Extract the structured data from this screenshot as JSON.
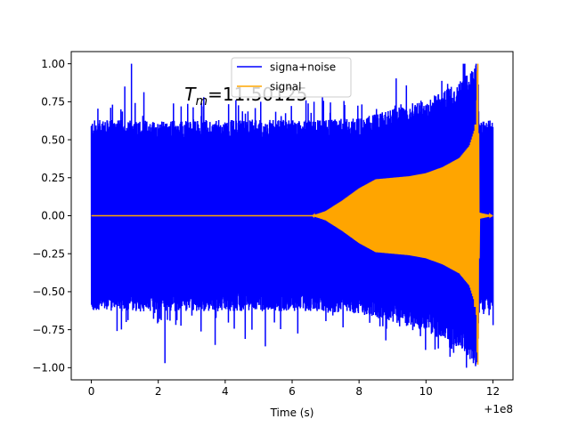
{
  "chart_data": {
    "type": "line",
    "title": "",
    "xlabel": "Time (s)",
    "ylabel": "",
    "x_offset_label": "+1e8",
    "xlim": [
      -0.6,
      12.6
    ],
    "ylim": [
      -1.08,
      1.08
    ],
    "xticks": [
      0,
      2,
      4,
      6,
      8,
      10,
      12
    ],
    "xtick_labels": [
      "0",
      "2",
      "4",
      "6",
      "8",
      "10",
      "12"
    ],
    "yticks": [
      -1.0,
      -0.75,
      -0.5,
      -0.25,
      0.0,
      0.25,
      0.5,
      0.75,
      1.0
    ],
    "ytick_labels": [
      "−1.00",
      "−0.75",
      "−0.50",
      "−0.25",
      "0.00",
      "0.25",
      "0.50",
      "0.75",
      "1.00"
    ],
    "grid": false,
    "legend_position": "top-center",
    "annotation": {
      "text_main": "T",
      "text_sub": "m",
      "text_eq": "=",
      "text_value": "11.50125",
      "x": 3.0,
      "y": 0.8
    },
    "series": [
      {
        "name": "signa+noise",
        "color": "#0000ff",
        "x_range": [
          0.0,
          12.0
        ],
        "envelope_upper": [
          [
            0.0,
            0.6
          ],
          [
            6.8,
            0.6
          ],
          [
            7.4,
            0.6
          ],
          [
            8.0,
            0.6
          ],
          [
            8.6,
            0.62
          ],
          [
            10.0,
            0.7
          ],
          [
            11.0,
            0.8
          ],
          [
            11.5,
            0.9
          ],
          [
            11.6,
            0.6
          ],
          [
            12.0,
            0.6
          ]
        ],
        "peak_max": 1.0,
        "peak_min": -0.97
      },
      {
        "name": "signal",
        "color": "#ffa500",
        "x_range": [
          0.0,
          12.0
        ],
        "envelope": [
          [
            0.0,
            0.0
          ],
          [
            6.6,
            0.0
          ],
          [
            7.0,
            0.03
          ],
          [
            7.5,
            0.1
          ],
          [
            8.0,
            0.18
          ],
          [
            8.5,
            0.24
          ],
          [
            9.0,
            0.25
          ],
          [
            9.5,
            0.26
          ],
          [
            10.0,
            0.28
          ],
          [
            10.5,
            0.32
          ],
          [
            11.0,
            0.38
          ],
          [
            11.3,
            0.46
          ],
          [
            11.5,
            0.6
          ],
          [
            11.55,
            1.0
          ],
          [
            11.6,
            0.02
          ],
          [
            12.0,
            0.0
          ]
        ]
      }
    ]
  }
}
